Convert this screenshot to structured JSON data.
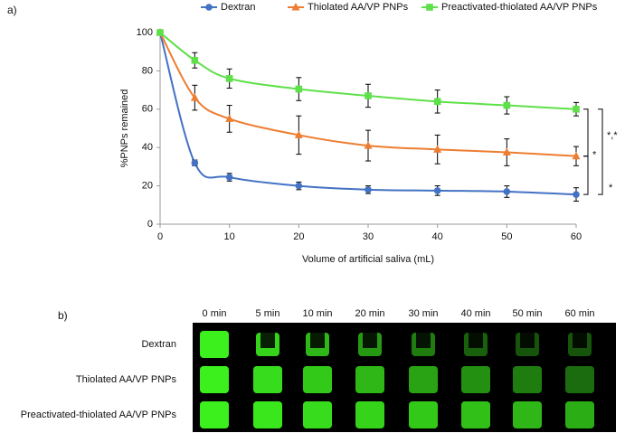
{
  "chart_data": {
    "type": "line",
    "panel_label": "a)",
    "x": [
      0,
      5,
      10,
      20,
      30,
      40,
      50,
      60
    ],
    "xlim": [
      0,
      60
    ],
    "xticks": [
      0,
      10,
      20,
      30,
      40,
      50,
      60
    ],
    "ylim": [
      0,
      100
    ],
    "yticks": [
      0,
      20,
      40,
      60,
      80,
      100
    ],
    "x_label": "Volume of artificial saliva (mL)",
    "y_label": "%PNPs remained",
    "legend": "top",
    "series": [
      {
        "name": "Dextran",
        "color": "#4472c4",
        "marker": "circle",
        "values": [
          100,
          32,
          24.5,
          20,
          18,
          17.5,
          17,
          15.5
        ],
        "errors": [
          0,
          1.5,
          2,
          2,
          2,
          2.5,
          3,
          3.5
        ]
      },
      {
        "name": "Thiolated AA/VP PNPs",
        "color": "#ed7d31",
        "marker": "triangle",
        "values": [
          100,
          66,
          55,
          46.5,
          41,
          39,
          37.5,
          35.5
        ],
        "errors": [
          0,
          6.5,
          7,
          10,
          8,
          7.5,
          7,
          5
        ]
      },
      {
        "name": "Preactivated-thiolated AA/VP PNPs",
        "color": "#5fe04a",
        "marker": "square",
        "values": [
          100,
          85.5,
          76,
          70.5,
          67,
          64,
          62,
          60
        ],
        "errors": [
          0,
          4,
          5,
          6,
          6,
          6,
          4.5,
          3.5
        ]
      }
    ],
    "annotations": [
      "*,*",
      "*",
      "*"
    ]
  },
  "image_panel": {
    "panel_label": "b)",
    "columns": [
      "0 min",
      "5 min",
      "10 min",
      "20 min",
      "30 min",
      "40 min",
      "50 min",
      "60 min"
    ],
    "rows": [
      "Dextran",
      "Thiolated AA/VP PNPs",
      "Preactivated-thiolated AA/VP PNPs"
    ]
  }
}
